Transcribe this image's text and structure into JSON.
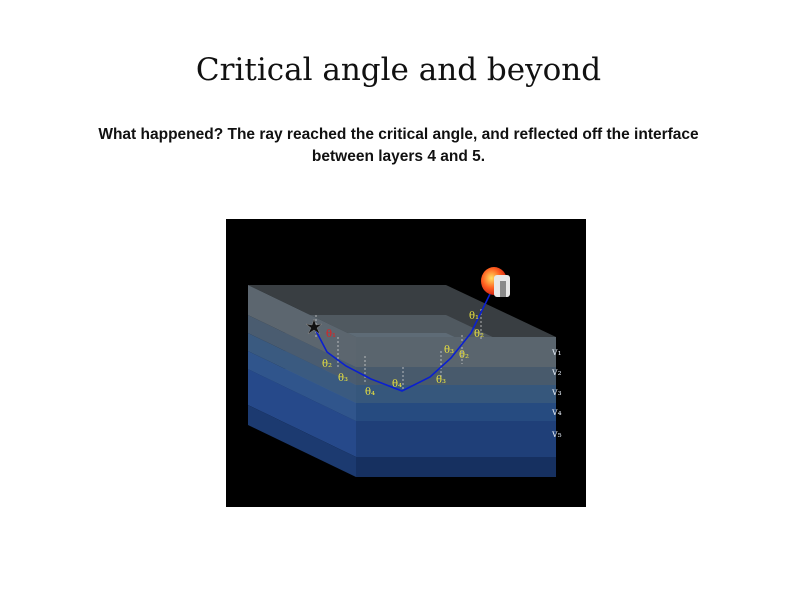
{
  "title": "Critical angle and beyond",
  "caption": "What happened? The ray reached the critical angle, and reflected off the interface between layers 4 and 5.",
  "diagram": {
    "source_label": "θ₁",
    "down_angles": [
      "θ₁",
      "θ₂",
      "θ₃",
      "θ₄"
    ],
    "up_angles": [
      "θ₄",
      "θ₃",
      "θ₃",
      "θ₂",
      "θ₂",
      "θ₁"
    ],
    "layer_velocities": [
      "v₁",
      "v₂",
      "v₃",
      "v₄",
      "v₅"
    ],
    "colors": {
      "ray": "#0a1fd0",
      "source_label": "#e02020",
      "angle_labels": "#e8e040",
      "background": "#000000"
    }
  }
}
